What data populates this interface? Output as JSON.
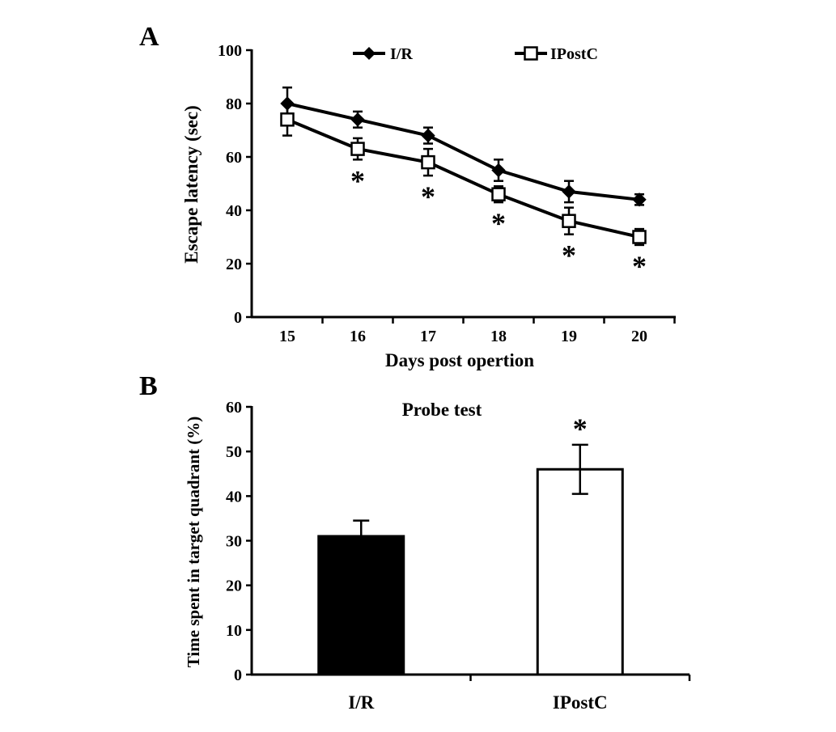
{
  "chart_data": [
    {
      "type": "line",
      "panel": "A",
      "title": "",
      "xlabel": "Days post opertion",
      "ylabel": "Escape latency (sec)",
      "x": [
        15,
        16,
        17,
        18,
        19,
        20
      ],
      "xticks": [
        "15",
        "16",
        "17",
        "18",
        "19",
        "20"
      ],
      "ylim": [
        0,
        100
      ],
      "yticks": [
        "0",
        "20",
        "40",
        "60",
        "80",
        "100"
      ],
      "grid": false,
      "legend": "top",
      "series": [
        {
          "name": "I/R",
          "marker": "filled-diamond",
          "values": [
            80,
            74,
            68,
            55,
            47,
            44
          ],
          "errors": [
            6,
            3,
            3,
            4,
            4,
            2
          ]
        },
        {
          "name": "IPostC",
          "marker": "open-square",
          "values": [
            74,
            63,
            58,
            46,
            36,
            30
          ],
          "errors": [
            6,
            4,
            5,
            3,
            5,
            3
          ]
        }
      ],
      "significance": {
        "symbol": "*",
        "x": [
          16,
          17,
          18,
          19,
          20
        ]
      }
    },
    {
      "type": "bar",
      "panel": "B",
      "title": "Probe test",
      "xlabel": "",
      "ylabel": "Time spent in target quadrant (%)",
      "categories": [
        "I/R",
        "IPostC"
      ],
      "values": [
        31,
        46
      ],
      "errors": [
        3.5,
        5.5
      ],
      "bar_fill": [
        "#000000",
        "#ffffff"
      ],
      "ylim": [
        0,
        60
      ],
      "yticks": [
        "0",
        "10",
        "20",
        "30",
        "40",
        "50",
        "60"
      ],
      "grid": false,
      "significance": {
        "symbol": "*",
        "categories": [
          "IPostC"
        ]
      }
    }
  ]
}
